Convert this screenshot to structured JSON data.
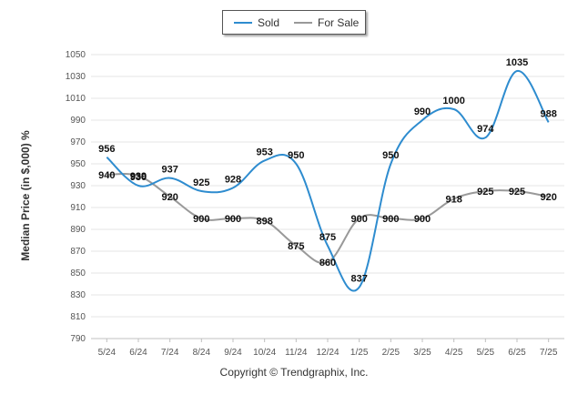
{
  "chart_data": {
    "type": "line",
    "ylabel": "Median Price (in $,000) %",
    "ylim": [
      790,
      1050
    ],
    "yticks": [
      790,
      810,
      830,
      850,
      870,
      890,
      910,
      930,
      950,
      970,
      990,
      1010,
      1030,
      1050
    ],
    "grid": true,
    "legend_position": "top-center",
    "categories": [
      "5/24",
      "6/24",
      "7/24",
      "8/24",
      "9/24",
      "10/24",
      "11/24",
      "12/24",
      "1/25",
      "2/25",
      "3/25",
      "4/25",
      "5/25",
      "6/25",
      "7/25"
    ],
    "series": [
      {
        "name": "Sold",
        "color": "#2e8ccf",
        "values": [
          956,
          930,
          937,
          925,
          928,
          953,
          950,
          875,
          837,
          950,
          990,
          1000,
          974,
          1035,
          988
        ]
      },
      {
        "name": "For Sale",
        "color": "#999999",
        "values": [
          940,
          939,
          920,
          900,
          900,
          898,
          875,
          860,
          900,
          900,
          900,
          918,
          925,
          925,
          920
        ]
      }
    ]
  },
  "footer": {
    "copyright": "Copyright © Trendgraphix, Inc."
  }
}
